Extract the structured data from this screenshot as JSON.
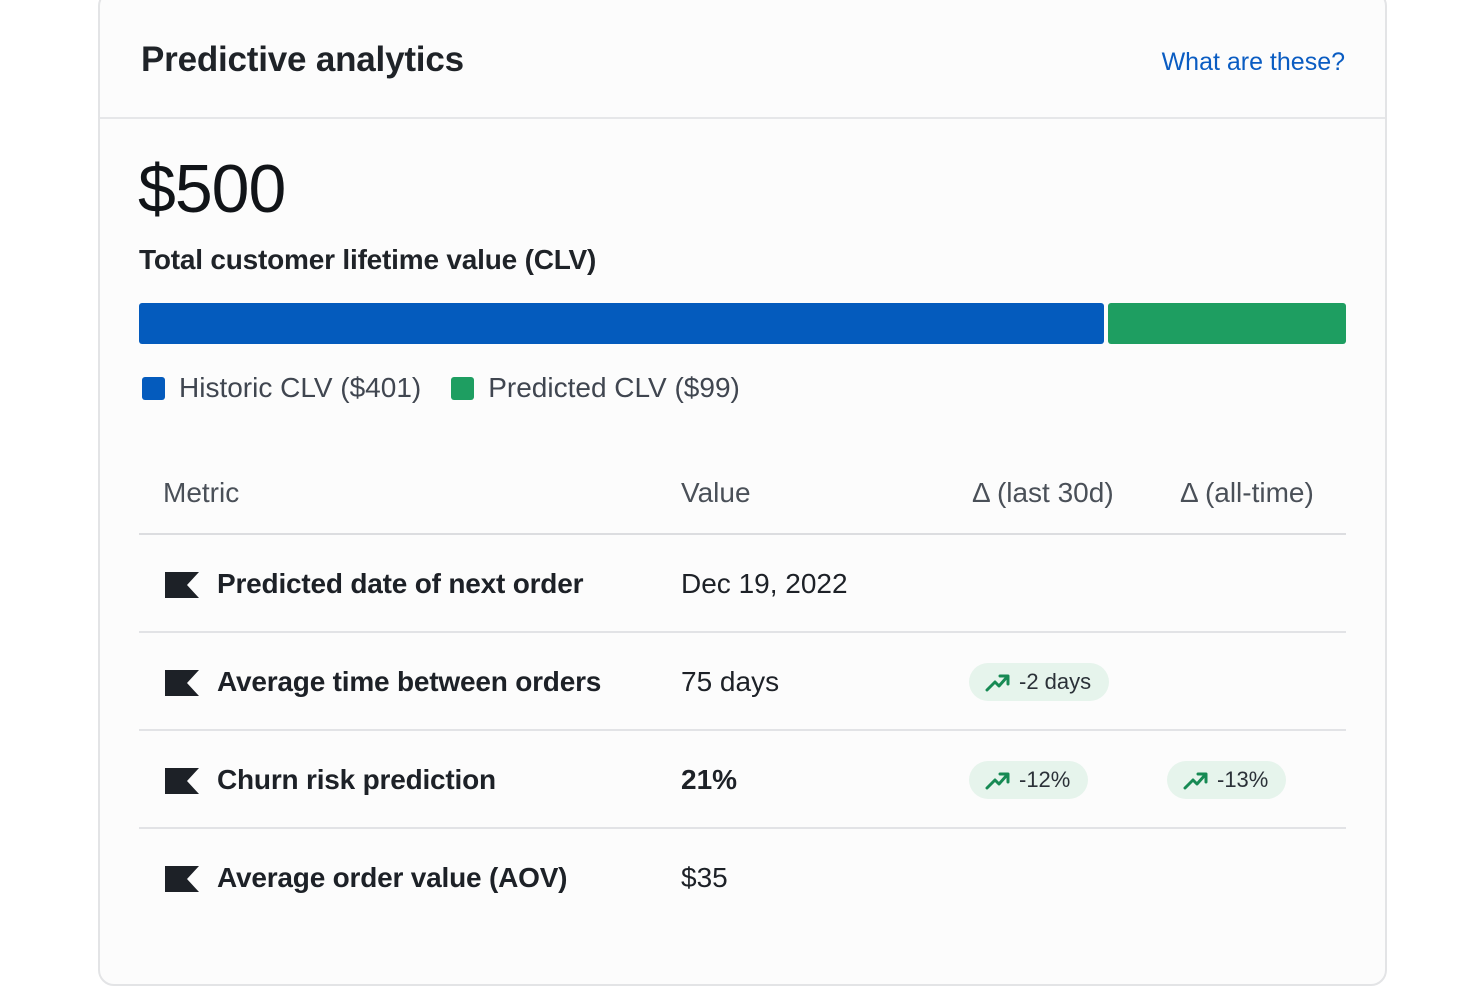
{
  "header": {
    "title": "Predictive analytics",
    "help_link": "What are these?"
  },
  "summary": {
    "total_value": "$500",
    "total_label": "Total customer lifetime value (CLV)",
    "historic_clv": 401,
    "predicted_clv": 99,
    "legend": {
      "historic": "Historic CLV ($401)",
      "predicted": "Predicted CLV ($99)"
    }
  },
  "colors": {
    "historic": "#045bbd",
    "predicted": "#1e9e61",
    "link": "#0a5cc2",
    "delta_badge_bg": "#e6f4ec"
  },
  "table": {
    "headers": {
      "metric": "Metric",
      "value": "Value",
      "delta_30d": "Δ (last 30d)",
      "delta_all": "Δ (all-time)"
    },
    "rows": [
      {
        "icon": "flag-icon",
        "metric": "Predicted date of next order",
        "value": "Dec 19, 2022",
        "delta_30d": "",
        "delta_all": ""
      },
      {
        "icon": "flag-icon",
        "metric": "Average time between orders",
        "value": "75 days",
        "delta_30d": "-2 days",
        "delta_all": ""
      },
      {
        "icon": "flag-icon",
        "metric": "Churn risk prediction",
        "value": "21%",
        "delta_30d": "-12%",
        "delta_all": "-13%"
      },
      {
        "icon": "flag-icon",
        "metric": "Average order value (AOV)",
        "value": "$35",
        "delta_30d": "",
        "delta_all": ""
      }
    ]
  }
}
